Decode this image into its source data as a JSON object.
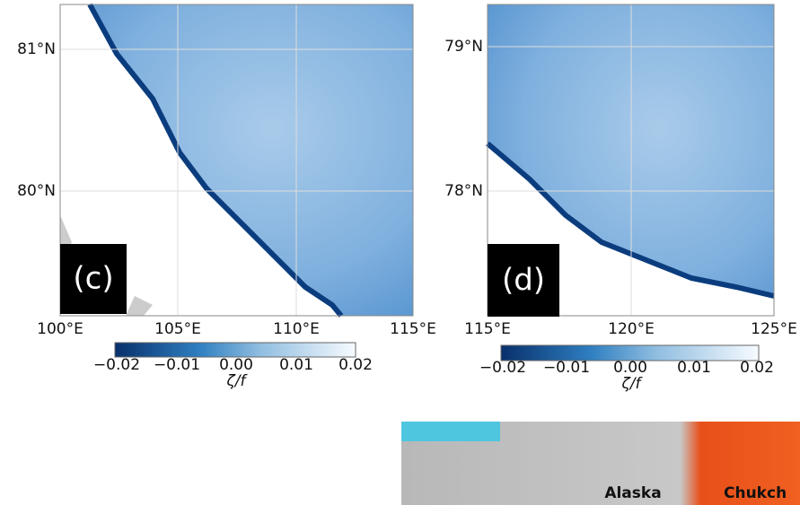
{
  "panels": [
    {
      "label": "(c)",
      "lat_labels": [
        "81°N",
        "80°N"
      ],
      "lon_labels": [
        "100°E",
        "105°E",
        "110°E",
        "115°E"
      ],
      "colorbar": {
        "ticks": [
          "−0.02",
          "−0.01",
          "0.00",
          "0.01",
          "0.02"
        ],
        "label": "ζ/f"
      }
    },
    {
      "label": "(d)",
      "lat_labels": [
        "79°N",
        "78°N"
      ],
      "lon_labels": [
        "115°E",
        "120°E",
        "125°E"
      ],
      "colorbar": {
        "ticks": [
          "−0.02",
          "−0.01",
          "0.00",
          "0.01",
          "0.02"
        ],
        "label": "ζ/f"
      }
    }
  ],
  "inset": {
    "labels": [
      "Alaska",
      "Chukch"
    ]
  }
}
